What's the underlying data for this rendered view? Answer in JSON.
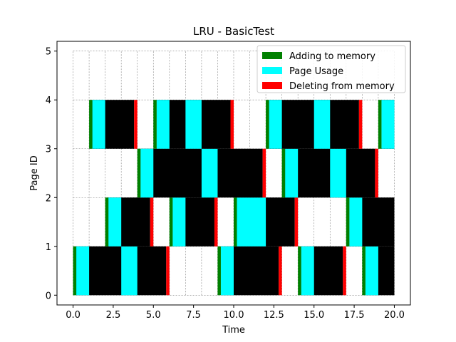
{
  "chart_data": {
    "type": "gantt",
    "title": "LRU - BasicTest",
    "xlabel": "Time",
    "ylabel": "Page ID",
    "xlim": [
      -1,
      21
    ],
    "ylim": [
      -0.2,
      5.2
    ],
    "xticks": [
      0,
      2.5,
      5,
      7.5,
      10,
      12.5,
      15,
      17.5,
      20
    ],
    "xtick_labels": [
      "0.0",
      "2.5",
      "5.0",
      "7.5",
      "10.0",
      "12.5",
      "15.0",
      "17.5",
      "20.0"
    ],
    "yticks": [
      0,
      1,
      2,
      3,
      4,
      5
    ],
    "ytick_labels": [
      "0",
      "1",
      "2",
      "3",
      "4",
      "5"
    ],
    "grid": true,
    "legend_position": "top-right",
    "legend": [
      {
        "label": "Adding to memory",
        "color": "#008000"
      },
      {
        "label": "Page Usage",
        "color": "#00ffff"
      },
      {
        "label": "Deleting from memory",
        "color": "#ff0000"
      }
    ],
    "colors": {
      "add": "#008000",
      "use": "#00ffff",
      "resident": "#000000",
      "delete": "#ff0000"
    },
    "rows": [
      {
        "page": 0,
        "residencies": [
          {
            "add": 0,
            "uses": [
              [
                0.2,
                1
              ],
              [
                3,
                4
              ]
            ],
            "delete": 5.8,
            "end": 6
          },
          {
            "add": 9,
            "uses": [
              [
                9.2,
                10
              ]
            ],
            "delete": 12.8,
            "end": 13
          },
          {
            "add": 14,
            "uses": [
              [
                14.2,
                15
              ]
            ],
            "delete": 16.8,
            "end": 17
          },
          {
            "add": 18,
            "uses": [
              [
                18.2,
                19
              ]
            ],
            "end": 20
          }
        ]
      },
      {
        "page": 1,
        "residencies": [
          {
            "add": 2,
            "uses": [
              [
                2.2,
                3
              ]
            ],
            "delete": 4.8,
            "end": 5
          },
          {
            "add": 6,
            "uses": [
              [
                6.2,
                7
              ]
            ],
            "delete": 8.8,
            "end": 9
          },
          {
            "add": 10,
            "uses": [
              [
                10.2,
                12
              ]
            ],
            "delete": 13.8,
            "end": 14
          },
          {
            "add": 17,
            "uses": [
              [
                17.2,
                18
              ]
            ],
            "end": 20
          }
        ]
      },
      {
        "page": 2,
        "residencies": [
          {
            "add": 4,
            "uses": [
              [
                4.2,
                5
              ],
              [
                8,
                9
              ]
            ],
            "delete": 11.8,
            "end": 12
          },
          {
            "add": 13,
            "uses": [
              [
                13.2,
                14
              ],
              [
                16,
                17
              ]
            ],
            "delete": 18.8,
            "end": 19
          }
        ]
      },
      {
        "page": 3,
        "residencies": [
          {
            "add": 1,
            "uses": [
              [
                1.2,
                2
              ]
            ],
            "delete": 3.8,
            "end": 4
          },
          {
            "add": 5,
            "uses": [
              [
                5.2,
                6
              ],
              [
                7,
                8
              ]
            ],
            "delete": 9.8,
            "end": 10
          },
          {
            "add": 12,
            "uses": [
              [
                12.2,
                13
              ],
              [
                15,
                16
              ]
            ],
            "delete": 17.8,
            "end": 18
          },
          {
            "add": 19,
            "uses": [
              [
                19.2,
                20
              ]
            ],
            "end": 20
          }
        ]
      }
    ]
  }
}
